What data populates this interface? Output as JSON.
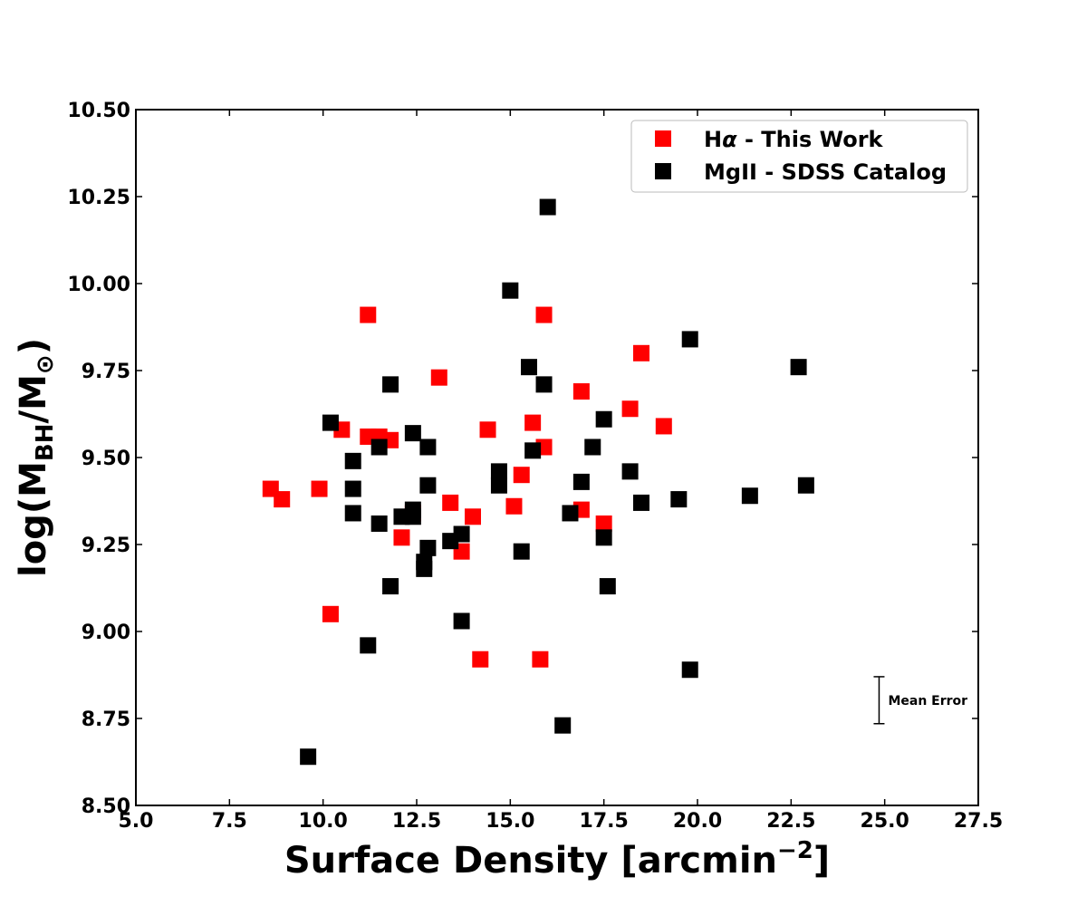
{
  "chart_data": {
    "type": "scatter",
    "title": "",
    "xlabel": "Surface Density [arcmin",
    "xlabel_sup": "−2",
    "xlabel_end": "]",
    "ylabel_pre": "log(M",
    "ylabel_sub1": "BH",
    "ylabel_mid": "/M",
    "ylabel_sub2": "⊙",
    "ylabel_end": ")",
    "xlim": [
      5.0,
      27.5
    ],
    "ylim": [
      8.5,
      10.5
    ],
    "xticks": [
      5.0,
      7.5,
      10.0,
      12.5,
      15.0,
      17.5,
      20.0,
      22.5,
      25.0,
      27.5
    ],
    "xtick_labels": [
      "5.0",
      "7.5",
      "10.0",
      "12.5",
      "15.0",
      "17.5",
      "20.0",
      "22.5",
      "25.0",
      "27.5"
    ],
    "yticks": [
      8.5,
      8.75,
      9.0,
      9.25,
      9.5,
      9.75,
      10.0,
      10.25,
      10.5
    ],
    "ytick_labels": [
      "8.50",
      "8.75",
      "9.00",
      "9.25",
      "9.50",
      "9.75",
      "10.00",
      "10.25",
      "10.50"
    ],
    "grid": false,
    "legend_position": "top-right",
    "series": [
      {
        "name": "Hα - This Work",
        "legend_pre": "H",
        "legend_greek": "α",
        "legend_post": " - This Work",
        "color": "#ff0000",
        "marker": "square",
        "points": [
          [
            8.6,
            9.41
          ],
          [
            8.9,
            9.38
          ],
          [
            9.9,
            9.41
          ],
          [
            10.2,
            9.05
          ],
          [
            10.5,
            9.58
          ],
          [
            11.2,
            9.91
          ],
          [
            11.2,
            9.56
          ],
          [
            11.5,
            9.56
          ],
          [
            11.8,
            9.55
          ],
          [
            12.1,
            9.27
          ],
          [
            12.4,
            9.34
          ],
          [
            13.1,
            9.73
          ],
          [
            13.4,
            9.37
          ],
          [
            13.7,
            9.23
          ],
          [
            14.0,
            9.33
          ],
          [
            14.2,
            8.92
          ],
          [
            14.4,
            9.58
          ],
          [
            15.1,
            9.36
          ],
          [
            15.3,
            9.45
          ],
          [
            15.6,
            9.6
          ],
          [
            15.8,
            8.92
          ],
          [
            15.9,
            9.91
          ],
          [
            15.9,
            9.53
          ],
          [
            16.9,
            9.69
          ],
          [
            16.9,
            9.35
          ],
          [
            17.5,
            9.31
          ],
          [
            18.2,
            9.64
          ],
          [
            18.5,
            9.8
          ],
          [
            19.1,
            9.59
          ]
        ]
      },
      {
        "name": "MgII - SDSS Catalog",
        "color": "#000000",
        "marker": "square",
        "points": [
          [
            9.6,
            8.64
          ],
          [
            10.2,
            9.6
          ],
          [
            10.8,
            9.49
          ],
          [
            10.8,
            9.41
          ],
          [
            10.8,
            9.34
          ],
          [
            11.2,
            8.96
          ],
          [
            11.5,
            9.53
          ],
          [
            11.5,
            9.31
          ],
          [
            11.8,
            9.71
          ],
          [
            11.8,
            9.13
          ],
          [
            12.1,
            9.33
          ],
          [
            12.4,
            9.57
          ],
          [
            12.4,
            9.35
          ],
          [
            12.4,
            9.33
          ],
          [
            12.7,
            9.2
          ],
          [
            12.7,
            9.18
          ],
          [
            12.8,
            9.53
          ],
          [
            12.8,
            9.42
          ],
          [
            12.8,
            9.24
          ],
          [
            13.4,
            9.26
          ],
          [
            13.7,
            9.28
          ],
          [
            13.7,
            9.03
          ],
          [
            14.7,
            9.46
          ],
          [
            14.7,
            9.42
          ],
          [
            15.0,
            9.98
          ],
          [
            15.3,
            9.23
          ],
          [
            15.5,
            9.76
          ],
          [
            15.6,
            9.52
          ],
          [
            15.9,
            9.71
          ],
          [
            16.0,
            10.22
          ],
          [
            16.4,
            8.73
          ],
          [
            16.6,
            9.34
          ],
          [
            16.9,
            9.43
          ],
          [
            17.2,
            9.53
          ],
          [
            17.5,
            9.61
          ],
          [
            17.5,
            9.27
          ],
          [
            17.6,
            9.13
          ],
          [
            18.2,
            9.46
          ],
          [
            18.5,
            9.37
          ],
          [
            19.5,
            9.38
          ],
          [
            19.8,
            9.84
          ],
          [
            19.8,
            8.89
          ],
          [
            21.4,
            9.39
          ],
          [
            22.7,
            9.76
          ],
          [
            22.9,
            9.42
          ]
        ]
      }
    ],
    "annotation": {
      "text": "Mean Error",
      "x": 24.85,
      "y_low": 8.735,
      "y_high": 8.87
    }
  }
}
